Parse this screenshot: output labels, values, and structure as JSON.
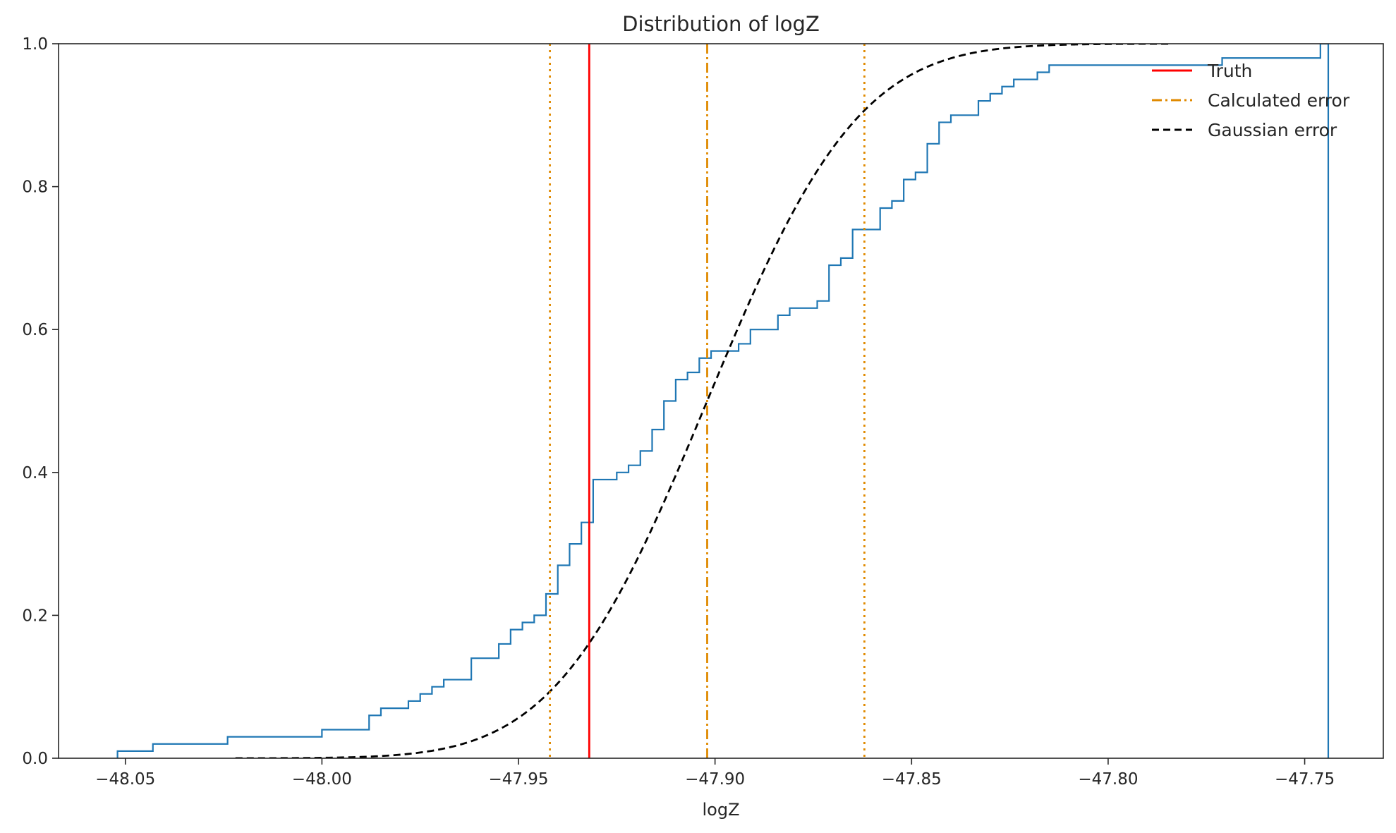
{
  "chart_data": {
    "type": "line",
    "title": "Distribution of logZ",
    "xlabel": "logZ",
    "ylabel": "",
    "xlim": [
      -48.067,
      -47.73
    ],
    "ylim": [
      0,
      1.0
    ],
    "x_ticks": [
      -48.05,
      -48.0,
      -47.95,
      -47.9,
      -47.85,
      -47.8,
      -47.75
    ],
    "x_tick_labels": [
      "−48.05",
      "−48.00",
      "−47.95",
      "−47.90",
      "−47.85",
      "−47.80",
      "−47.75"
    ],
    "y_ticks": [
      0.0,
      0.2,
      0.4,
      0.6,
      0.8,
      1.0
    ],
    "y_tick_labels": [
      "0.0",
      "0.2",
      "0.4",
      "0.6",
      "0.8",
      "1.0"
    ],
    "grid": false,
    "legend_position": "top-right",
    "colors": {
      "ecdf": "#1f77b4",
      "truth": "#ff0000",
      "calculated": "#e08a00",
      "gaussian": "#000000"
    },
    "ecdf": {
      "points": [
        [
          -48.052,
          0.01
        ],
        [
          -48.043,
          0.02
        ],
        [
          -48.024,
          0.03
        ],
        [
          -48.0,
          0.04
        ],
        [
          -47.988,
          0.06
        ],
        [
          -47.985,
          0.07
        ],
        [
          -47.978,
          0.08
        ],
        [
          -47.975,
          0.09
        ],
        [
          -47.972,
          0.1
        ],
        [
          -47.969,
          0.11
        ],
        [
          -47.962,
          0.14
        ],
        [
          -47.955,
          0.16
        ],
        [
          -47.952,
          0.18
        ],
        [
          -47.949,
          0.19
        ],
        [
          -47.946,
          0.2
        ],
        [
          -47.943,
          0.23
        ],
        [
          -47.94,
          0.27
        ],
        [
          -47.937,
          0.3
        ],
        [
          -47.934,
          0.33
        ],
        [
          -47.931,
          0.39
        ],
        [
          -47.925,
          0.4
        ],
        [
          -47.922,
          0.41
        ],
        [
          -47.919,
          0.43
        ],
        [
          -47.916,
          0.46
        ],
        [
          -47.913,
          0.5
        ],
        [
          -47.91,
          0.53
        ],
        [
          -47.907,
          0.54
        ],
        [
          -47.904,
          0.56
        ],
        [
          -47.901,
          0.57
        ],
        [
          -47.894,
          0.58
        ],
        [
          -47.891,
          0.6
        ],
        [
          -47.884,
          0.62
        ],
        [
          -47.881,
          0.63
        ],
        [
          -47.874,
          0.64
        ],
        [
          -47.871,
          0.69
        ],
        [
          -47.868,
          0.7
        ],
        [
          -47.865,
          0.74
        ],
        [
          -47.858,
          0.77
        ],
        [
          -47.855,
          0.78
        ],
        [
          -47.852,
          0.81
        ],
        [
          -47.849,
          0.82
        ],
        [
          -47.846,
          0.86
        ],
        [
          -47.843,
          0.89
        ],
        [
          -47.84,
          0.9
        ],
        [
          -47.833,
          0.92
        ],
        [
          -47.83,
          0.93
        ],
        [
          -47.827,
          0.94
        ],
        [
          -47.824,
          0.95
        ],
        [
          -47.818,
          0.96
        ],
        [
          -47.815,
          0.97
        ],
        [
          -47.771,
          0.97
        ],
        [
          -47.771,
          0.98
        ],
        [
          -47.746,
          0.98
        ],
        [
          -47.746,
          1.0
        ]
      ],
      "end_drop_x": -47.744
    },
    "vlines": [
      {
        "name": "Truth",
        "x": -47.932,
        "style": "solid"
      },
      {
        "name": "Calculated error",
        "x": -47.902,
        "style": "dashdot"
      },
      {
        "name": "Calculated error lower",
        "x": -47.942,
        "style": "dotted"
      },
      {
        "name": "Calculated error upper",
        "x": -47.862,
        "style": "dotted"
      }
    ],
    "gaussian": {
      "mean": -47.902,
      "sd": 0.0303,
      "x_range": [
        -48.022,
        -47.784
      ]
    },
    "legend": [
      {
        "label": "Truth",
        "style": "solid",
        "color_key": "truth"
      },
      {
        "label": "Calculated error",
        "style": "dashdot",
        "color_key": "calculated"
      },
      {
        "label": "Gaussian error",
        "style": "dashed",
        "color_key": "gaussian"
      }
    ]
  }
}
